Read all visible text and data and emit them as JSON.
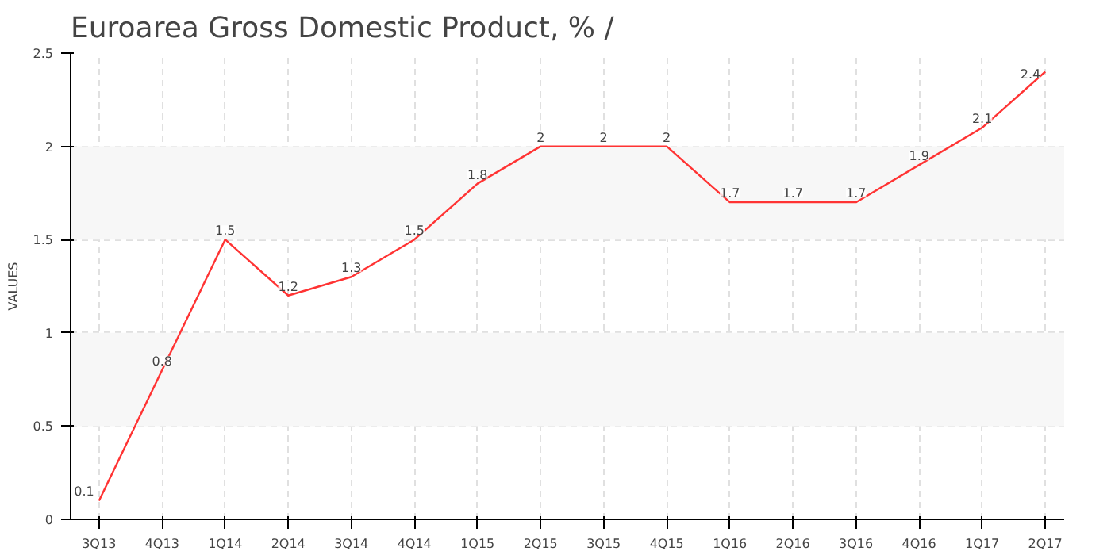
{
  "chart_data": {
    "type": "line",
    "title": "Euroarea Gross Domestic Product, % /",
    "ylabel": "VALUES",
    "categories": [
      "3Q13",
      "4Q13",
      "1Q14",
      "2Q14",
      "3Q14",
      "4Q14",
      "1Q15",
      "2Q15",
      "3Q15",
      "4Q15",
      "1Q16",
      "2Q16",
      "3Q16",
      "4Q16",
      "1Q17",
      "2Q17"
    ],
    "series": [
      {
        "color": "#ff3333",
        "values": [
          0.1,
          0.8,
          1.5,
          1.2,
          1.3,
          1.5,
          1.8,
          2,
          2,
          2,
          1.7,
          1.7,
          1.7,
          1.9,
          2.1,
          2.4
        ]
      }
    ],
    "ylim": [
      0,
      2.5
    ],
    "yticks": [
      0,
      0.5,
      1,
      1.5,
      2,
      2.5
    ],
    "bands": [
      {
        "axis": "y",
        "from": 0.5,
        "to": 1,
        "color": "#f7f7f7"
      },
      {
        "axis": "y",
        "from": 1.5,
        "to": 2,
        "color": "#f7f7f7"
      }
    ],
    "grid": true,
    "data_labels": true,
    "marker": "none",
    "line_style": "solid"
  }
}
